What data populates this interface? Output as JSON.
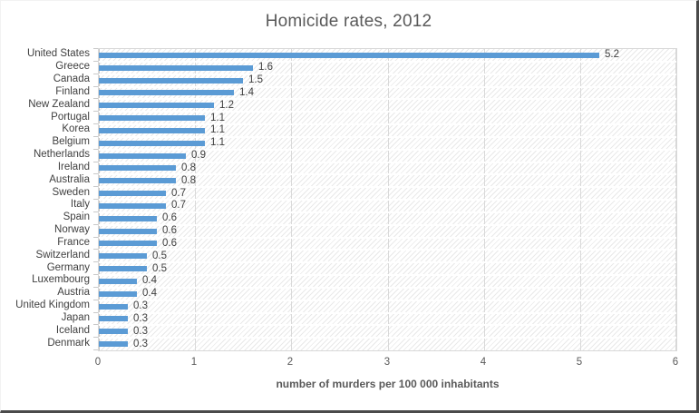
{
  "chart_data": {
    "type": "bar",
    "orientation": "horizontal",
    "title": "Homicide rates, 2012",
    "xlabel": "number of murders per 100 000 inhabitants",
    "categories": [
      "United States",
      "Greece",
      "Canada",
      "Finland",
      "New Zealand",
      "Portugal",
      "Korea",
      "Belgium",
      "Netherlands",
      "Ireland",
      "Australia",
      "Sweden",
      "Italy",
      "Spain",
      "Norway",
      "France",
      "Switzerland",
      "Germany",
      "Luxembourg",
      "Austria",
      "United Kingdom",
      "Japan",
      "Iceland",
      "Denmark"
    ],
    "values": [
      5.2,
      1.6,
      1.5,
      1.4,
      1.2,
      1.1,
      1.1,
      1.1,
      0.9,
      0.8,
      0.8,
      0.7,
      0.7,
      0.6,
      0.6,
      0.6,
      0.5,
      0.5,
      0.4,
      0.4,
      0.3,
      0.3,
      0.3,
      0.3
    ],
    "xlim": [
      0,
      6
    ],
    "xticks": [
      "0",
      "1",
      "2",
      "3",
      "4",
      "5",
      "6"
    ],
    "grid": true,
    "legend": false,
    "data_labels": true,
    "plot_fill": "diagonal-hatch",
    "colors": {
      "bar": "#5b9bd5",
      "title": "#595959",
      "category_label": "#404040",
      "data_label": "#404040",
      "tick_label": "#595959",
      "axis_title": "#595959",
      "gridline": "#d9d9d9",
      "axis_line": "#c4c4c4",
      "frame_shadow": "#4a4a4a"
    }
  }
}
